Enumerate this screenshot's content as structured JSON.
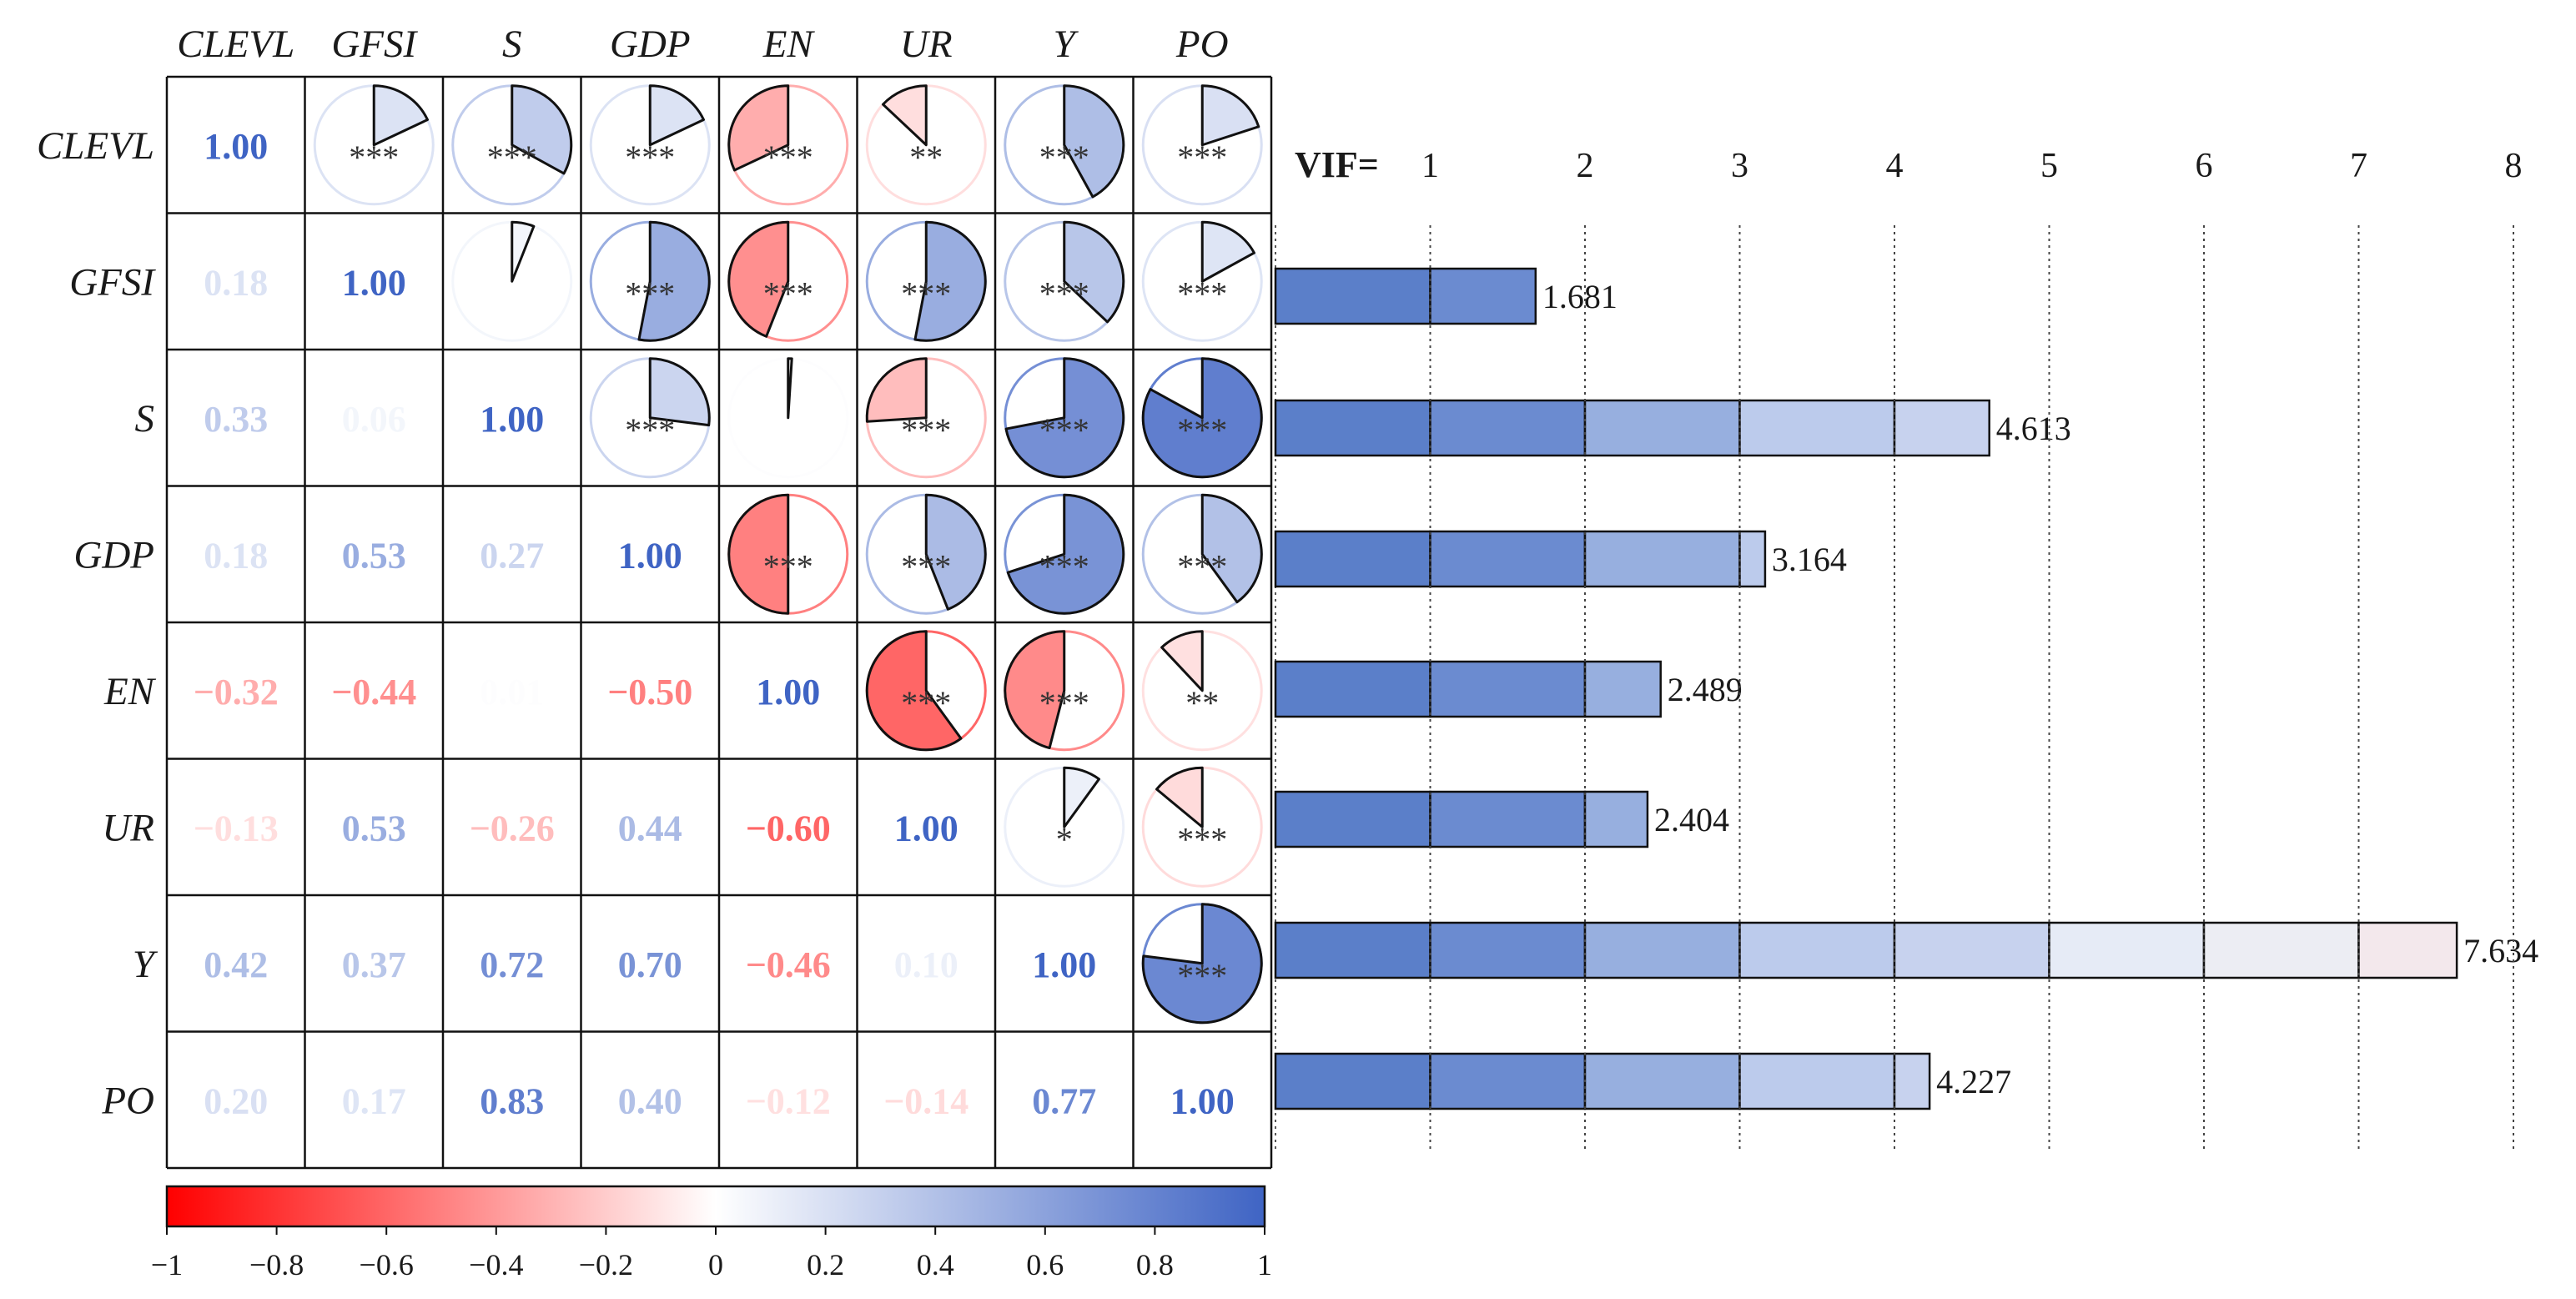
{
  "chart_data": [
    {
      "type": "heatmap",
      "title": "",
      "variables": [
        "CLEVL",
        "GFSI",
        "S",
        "GDP",
        "EN",
        "UR",
        "Y",
        "PO"
      ],
      "lower_triangle_labels": [
        [
          "1.00"
        ],
        [
          "0.18",
          "1.00"
        ],
        [
          "0.33",
          "0.06",
          "1.00"
        ],
        [
          "0.18",
          "0.53",
          "0.27",
          "1.00"
        ],
        [
          "−0.32",
          "−0.44",
          "0.01",
          "−0.50",
          "1.00"
        ],
        [
          "−0.13",
          "0.53",
          "−0.26",
          "0.44",
          "−0.60",
          "1.00"
        ],
        [
          "0.42",
          "0.37",
          "0.72",
          "0.70",
          "−0.46",
          "0.10",
          "1.00"
        ],
        [
          "0.20",
          "0.17",
          "0.83",
          "0.40",
          "−0.12",
          "−0.14",
          "0.77",
          "1.00"
        ]
      ],
      "correlations": [
        [
          1.0,
          0.18,
          0.33,
          0.18,
          -0.32,
          -0.13,
          0.42,
          0.2
        ],
        [
          0.18,
          1.0,
          0.06,
          0.53,
          -0.44,
          0.53,
          0.37,
          0.17
        ],
        [
          0.33,
          0.06,
          1.0,
          0.27,
          0.01,
          -0.26,
          0.72,
          0.83
        ],
        [
          0.18,
          0.53,
          0.27,
          1.0,
          -0.5,
          0.44,
          0.7,
          0.4
        ],
        [
          -0.32,
          -0.44,
          0.01,
          -0.5,
          1.0,
          -0.6,
          -0.46,
          -0.12
        ],
        [
          -0.13,
          0.53,
          -0.26,
          0.44,
          -0.6,
          1.0,
          0.1,
          -0.14
        ],
        [
          0.42,
          0.37,
          0.72,
          0.7,
          -0.46,
          0.1,
          1.0,
          0.77
        ],
        [
          0.2,
          0.17,
          0.83,
          0.4,
          -0.12,
          -0.14,
          0.77,
          1.0
        ]
      ],
      "significance": [
        [
          "",
          "***",
          "***",
          "***",
          "***",
          "**",
          "***",
          "***"
        ],
        [
          "",
          "",
          "",
          "***",
          "***",
          "***",
          "***",
          "***"
        ],
        [
          "",
          "",
          "",
          "***",
          "",
          "***",
          "***",
          "***"
        ],
        [
          "",
          "",
          "",
          "",
          "***",
          "***",
          "***",
          "***"
        ],
        [
          "",
          "",
          "",
          "",
          "",
          "***",
          "***",
          "**"
        ],
        [
          "",
          "",
          "",
          "",
          "",
          "",
          "*",
          "***"
        ],
        [
          "",
          "",
          "",
          "",
          "",
          "",
          "",
          "***"
        ],
        [
          "",
          "",
          "",
          "",
          "",
          "",
          "",
          ""
        ]
      ],
      "colorbar": {
        "range": [
          -1,
          1
        ],
        "ticks": [
          "−1",
          "−0.8",
          "−0.6",
          "−0.4",
          "−0.2",
          "0",
          "0.2",
          "0.4",
          "0.6",
          "0.8",
          "1"
        ],
        "colors": {
          "negative": "#ff0000",
          "zero": "#ffffff",
          "positive": "#3f64c4"
        }
      },
      "upper_triangle_style": "pie"
    },
    {
      "type": "bar",
      "orientation": "horizontal",
      "label": "VIF=",
      "xlim": [
        0,
        8
      ],
      "ticks": [
        "1",
        "2",
        "3",
        "4",
        "5",
        "6",
        "7",
        "8"
      ],
      "categories": [
        "GFSI",
        "S",
        "GDP",
        "EN",
        "UR",
        "Y",
        "PO"
      ],
      "values": [
        1.681,
        4.613,
        3.164,
        2.489,
        2.404,
        7.634,
        4.227
      ],
      "value_labels": [
        "1.681",
        "4.613",
        "3.164",
        "2.489",
        "2.404",
        "7.634",
        "4.227"
      ],
      "segment_colors": [
        "#5b7fc9",
        "#6b8bd0",
        "#97afdf",
        "#bccbec",
        "#c7d2ee",
        "#e6ebf6",
        "#ecedf3",
        "#f3e8ec",
        "#f5e4e7"
      ]
    }
  ]
}
